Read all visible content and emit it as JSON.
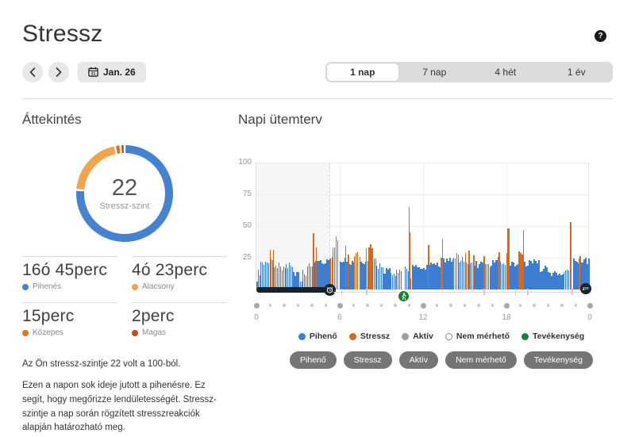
{
  "header": {
    "title": "Stressz",
    "help_label": "?"
  },
  "toolbar": {
    "date_label": "Jan. 26",
    "tabs": [
      {
        "label": "1 nap",
        "active": true
      },
      {
        "label": "7 nap",
        "active": false
      },
      {
        "label": "4 hét",
        "active": false
      },
      {
        "label": "1 év",
        "active": false
      }
    ]
  },
  "overview": {
    "heading": "Áttekintés",
    "donut": {
      "value": "22",
      "label": "Stressz-szint",
      "segments": [
        {
          "name": "Pihenés",
          "minutes": 1005,
          "color": "#4583d2"
        },
        {
          "name": "Alacsony",
          "minutes": 263,
          "color": "#f0a54d"
        },
        {
          "name": "Közepes",
          "minutes": 15,
          "color": "#e2701d"
        },
        {
          "name": "Magas",
          "minutes": 2,
          "color": "#c44a22"
        }
      ]
    },
    "stats": [
      {
        "value": "16ó 45perc",
        "label": "Pihenés",
        "color": "#4583d2"
      },
      {
        "value": "4ó 23perc",
        "label": "Alacsony",
        "color": "#f0a54d"
      },
      {
        "value": "15perc",
        "label": "Közepes",
        "color": "#e2701d"
      },
      {
        "value": "2perc",
        "label": "Magas",
        "color": "#c44a22"
      }
    ],
    "summary": "Az Ön stressz-szintje 22 volt a 100-ból.",
    "description": "Ezen a napon sok ideje jutott a pihenésre. Ez segít, hogy megőrizze lendületességét. Stressz-szintje a nap során rögzített stresszreakciók alapján határozható meg."
  },
  "schedule": {
    "heading": "Napi ütemterv",
    "legend": [
      {
        "label": "Pihenő",
        "color": "#3d7dd2"
      },
      {
        "label": "Stressz",
        "color": "#d9681b"
      },
      {
        "label": "Aktív",
        "color": "#9e9e9e"
      },
      {
        "label": "Nem mérhető",
        "color": "#ffffff",
        "outline": "#8a8a8a"
      },
      {
        "label": "Tevékenység",
        "color": "#1e7d34"
      }
    ],
    "chips": [
      "Pihenő",
      "Stressz",
      "Aktív",
      "Nem mérhető",
      "Tevékenység"
    ]
  },
  "chart_data": {
    "type": "bar",
    "title": "Napi ütemterv",
    "ylim": [
      0,
      100
    ],
    "y_ticks": [
      100,
      75,
      50,
      25
    ],
    "x_range_hours": [
      0,
      24
    ],
    "x_tick_hours": [
      0,
      6,
      12,
      18,
      24
    ],
    "x_tick_labels": [
      "0",
      "6",
      "12",
      "18",
      "0"
    ],
    "hours_grid": [
      6,
      12,
      18
    ],
    "colors": {
      "rest": "#3d7dd2",
      "stress": "#d9681b",
      "sleep_track": "#16222e",
      "activity": "#1e7d34"
    },
    "sleep_region_hours": [
      0,
      5.3
    ],
    "track_tick_hours": [
      6.1,
      7.9,
      16.35,
      18.6,
      19.5,
      22.7
    ],
    "markers": {
      "sleep_end_clock_hour": 5.3,
      "activity_hour": 10.6,
      "sleep_start_hour": 23.7
    },
    "segments_comment": "[startHour, endHour, type r=rest(blue) s=stress(orange) g=gap(unmeasured), minValue, maxValue] stress level 0-100",
    "segments": [
      [
        0.0,
        0.1,
        "r",
        3,
        7
      ],
      [
        0.1,
        0.28,
        "r",
        9,
        16
      ],
      [
        0.28,
        0.95,
        "r",
        19,
        24
      ],
      [
        0.95,
        1.02,
        "s",
        31,
        33
      ],
      [
        1.02,
        1.18,
        "r",
        21,
        24
      ],
      [
        1.18,
        1.25,
        "s",
        30,
        32
      ],
      [
        1.25,
        1.8,
        "r",
        16,
        22
      ],
      [
        1.8,
        2.1,
        "r",
        14,
        19
      ],
      [
        2.1,
        2.65,
        "r",
        17,
        22
      ],
      [
        2.65,
        3.0,
        "r",
        10,
        16
      ],
      [
        3.0,
        3.3,
        "r",
        4,
        8
      ],
      [
        3.3,
        3.65,
        "r",
        9,
        17
      ],
      [
        3.65,
        4.08,
        "r",
        18,
        24
      ],
      [
        4.08,
        4.14,
        "s",
        44,
        46
      ],
      [
        4.14,
        4.28,
        "r",
        20,
        24
      ],
      [
        4.28,
        4.35,
        "s",
        31,
        33
      ],
      [
        4.35,
        5.05,
        "r",
        20,
        25
      ],
      [
        5.05,
        5.3,
        "r",
        22,
        25
      ],
      [
        5.3,
        5.48,
        "s",
        24,
        31
      ],
      [
        5.48,
        5.7,
        "s",
        31,
        39
      ],
      [
        5.7,
        5.82,
        "s",
        37,
        42
      ],
      [
        5.82,
        5.9,
        "s",
        32,
        35
      ],
      [
        5.9,
        6.02,
        "g",
        0,
        0
      ],
      [
        6.02,
        6.08,
        "r",
        20,
        23
      ],
      [
        6.08,
        6.12,
        "g",
        0,
        0
      ],
      [
        6.12,
        6.38,
        "r",
        20,
        25
      ],
      [
        6.38,
        6.46,
        "s",
        34,
        36
      ],
      [
        6.46,
        6.58,
        "r",
        21,
        24
      ],
      [
        6.58,
        6.65,
        "s",
        27,
        29
      ],
      [
        6.65,
        7.0,
        "r",
        19,
        24
      ],
      [
        7.0,
        7.32,
        "s",
        26,
        30
      ],
      [
        7.32,
        7.4,
        "g",
        0,
        0
      ],
      [
        7.4,
        7.5,
        "s",
        25,
        27
      ],
      [
        7.5,
        7.88,
        "r",
        19,
        24
      ],
      [
        7.88,
        7.97,
        "s",
        31,
        33
      ],
      [
        7.97,
        8.08,
        "r",
        20,
        23
      ],
      [
        8.08,
        8.32,
        "s",
        32,
        36
      ],
      [
        8.32,
        8.6,
        "r",
        20,
        25
      ],
      [
        8.6,
        9.1,
        "r",
        16,
        21
      ],
      [
        9.1,
        9.65,
        "r",
        11,
        17
      ],
      [
        9.65,
        10.05,
        "r",
        8,
        14
      ],
      [
        10.05,
        10.5,
        "r",
        12,
        18
      ],
      [
        10.5,
        10.68,
        "g",
        0,
        0
      ],
      [
        10.68,
        10.95,
        "r",
        14,
        19
      ],
      [
        10.95,
        11.02,
        "s",
        65,
        67
      ],
      [
        11.02,
        11.08,
        "s",
        44,
        46
      ],
      [
        11.08,
        11.2,
        "r",
        8,
        12
      ],
      [
        11.2,
        12.35,
        "r",
        15,
        20
      ],
      [
        12.35,
        12.42,
        "s",
        34,
        36
      ],
      [
        12.42,
        13.28,
        "r",
        17,
        22
      ],
      [
        13.28,
        13.36,
        "s",
        24,
        26
      ],
      [
        13.36,
        13.44,
        "s",
        40,
        42
      ],
      [
        13.44,
        14.15,
        "r",
        19,
        25
      ],
      [
        14.15,
        14.55,
        "s",
        24,
        29
      ],
      [
        14.55,
        15.0,
        "r",
        20,
        26
      ],
      [
        15.0,
        15.08,
        "s",
        27,
        29
      ],
      [
        15.08,
        15.28,
        "r",
        20,
        23
      ],
      [
        15.28,
        15.36,
        "s",
        29,
        31
      ],
      [
        15.36,
        15.6,
        "r",
        19,
        22
      ],
      [
        15.6,
        15.68,
        "s",
        25,
        27
      ],
      [
        15.68,
        16.35,
        "r",
        17,
        23
      ],
      [
        16.35,
        16.43,
        "s",
        25,
        27
      ],
      [
        16.43,
        16.8,
        "r",
        17,
        21
      ],
      [
        16.8,
        16.88,
        "g",
        0,
        0
      ],
      [
        16.88,
        17.35,
        "r",
        18,
        23
      ],
      [
        17.35,
        17.44,
        "s",
        25,
        27
      ],
      [
        17.44,
        17.54,
        "s",
        29,
        31
      ],
      [
        17.54,
        17.98,
        "r",
        19,
        24
      ],
      [
        17.98,
        18.06,
        "s",
        28,
        30
      ],
      [
        18.06,
        18.14,
        "s",
        46,
        48
      ],
      [
        18.14,
        18.24,
        "s",
        48,
        50
      ],
      [
        18.24,
        18.88,
        "r",
        17,
        22
      ],
      [
        18.88,
        19.18,
        "s",
        26,
        31
      ],
      [
        19.18,
        19.28,
        "s",
        46,
        48
      ],
      [
        19.28,
        19.6,
        "r",
        18,
        22
      ],
      [
        19.6,
        20.4,
        "r",
        19,
        24
      ],
      [
        20.4,
        21.2,
        "r",
        13,
        19
      ],
      [
        21.2,
        22.1,
        "r",
        9,
        15
      ],
      [
        22.1,
        22.5,
        "r",
        14,
        18
      ],
      [
        22.5,
        22.58,
        "g",
        0,
        0
      ],
      [
        22.58,
        22.68,
        "s",
        52,
        54
      ],
      [
        22.68,
        22.8,
        "g",
        0,
        0
      ],
      [
        22.8,
        23.18,
        "r",
        20,
        26
      ],
      [
        23.18,
        23.26,
        "s",
        23,
        25
      ],
      [
        23.26,
        23.34,
        "s",
        26,
        28
      ],
      [
        23.34,
        24.0,
        "r",
        18,
        25
      ]
    ]
  }
}
